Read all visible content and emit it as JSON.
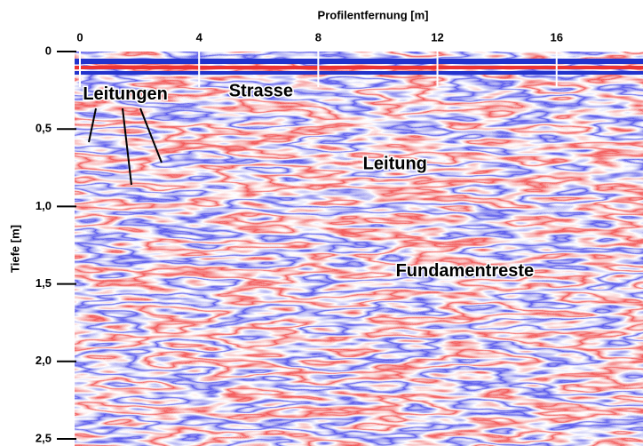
{
  "chart_data": {
    "type": "radargram",
    "x_label": "Profilentfernung [m]",
    "y_label": "Tiefe [m]",
    "xlim": [
      0,
      18.9
    ],
    "xticks": [
      0,
      4,
      8,
      12,
      16
    ],
    "ylim": [
      0,
      2.5
    ],
    "yticks": [
      0,
      {
        "value": 0.5,
        "label": "0,5"
      },
      {
        "value": 1.0,
        "label": "1,0"
      },
      {
        "value": 1.5,
        "label": "1,5"
      },
      {
        "value": 2.0,
        "label": "2,0"
      },
      {
        "value": 2.5,
        "label": "2,5"
      }
    ],
    "annotations": [
      {
        "text": "Leitungen",
        "x": 0.1,
        "y": 0.28
      },
      {
        "text": "Strasse",
        "x": 5.0,
        "y": 0.26
      },
      {
        "text": "Leitung",
        "x": 9.5,
        "y": 0.73
      },
      {
        "text": "Fundamentreste",
        "x": 10.6,
        "y": 1.42
      }
    ]
  }
}
